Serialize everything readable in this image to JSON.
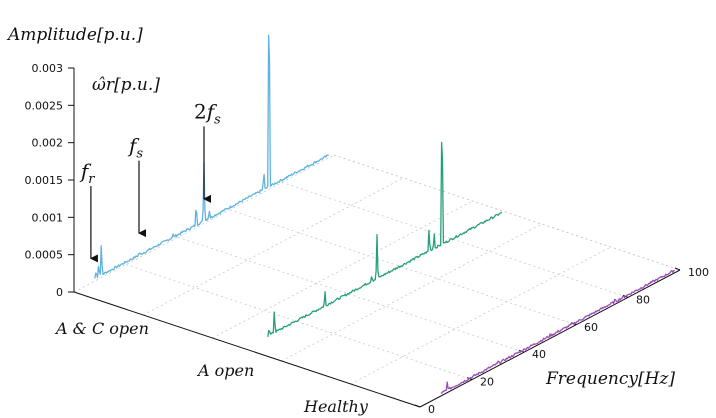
{
  "chart_data": {
    "type": "line",
    "title": "",
    "zlabel": "Amplitude[p.u.]",
    "inner_label": "ω̂r[p.u.]",
    "xlabel": "Frequency[Hz]",
    "xlim": [
      0,
      100
    ],
    "zlim": [
      0,
      0.003
    ],
    "z_ticks": [
      "0",
      "0.0005",
      "0.001",
      "0.0015",
      "0.002",
      "0.0025",
      "0.003"
    ],
    "x_ticks": [
      "0",
      "20",
      "40",
      "60",
      "80",
      "100"
    ],
    "series_axis_labels": [
      "A & C open",
      "A open",
      "Healthy"
    ],
    "annotations": [
      {
        "label": "fr",
        "x": 6.5
      },
      {
        "label": "fs",
        "x": 25
      },
      {
        "label": "2fs",
        "x": 50
      }
    ],
    "series": [
      {
        "name": "A & C open",
        "color": "#5fb3e0",
        "peaks": [
          {
            "x": 6.5,
            "y": 8e-05
          },
          {
            "x": 8.5,
            "y": 0.00015
          },
          {
            "x": 9.5,
            "y": 0.00022
          },
          {
            "x": 10.5,
            "y": 0.00048
          },
          {
            "x": 25,
            "y": 9e-05
          },
          {
            "x": 38,
            "y": 0.0001
          },
          {
            "x": 47,
            "y": 0.00035
          },
          {
            "x": 50,
            "y": 0.00082
          },
          {
            "x": 52,
            "y": 0.00016
          },
          {
            "x": 73,
            "y": 0.0003
          },
          {
            "x": 75,
            "y": 0.0031
          }
        ]
      },
      {
        "name": "A open",
        "color": "#26a07c",
        "peaks": [
          {
            "x": 8.5,
            "y": 0.00015
          },
          {
            "x": 10.5,
            "y": 0.00035
          },
          {
            "x": 30,
            "y": 0.00025
          },
          {
            "x": 48,
            "y": 0.00012
          },
          {
            "x": 50,
            "y": 0.00062
          },
          {
            "x": 70,
            "y": 0.00035
          },
          {
            "x": 72,
            "y": 0.00025
          },
          {
            "x": 75,
            "y": 0.0021
          }
        ]
      },
      {
        "name": "Healthy",
        "color": "#9b4bb8",
        "peaks": [
          {
            "x": 8.5,
            "y": 5e-05
          },
          {
            "x": 10.5,
            "y": 0.00016
          },
          {
            "x": 25,
            "y": 6e-05
          },
          {
            "x": 30,
            "y": 7e-05
          },
          {
            "x": 50,
            "y": 6e-05
          },
          {
            "x": 75,
            "y": 0.0001
          }
        ]
      }
    ]
  }
}
